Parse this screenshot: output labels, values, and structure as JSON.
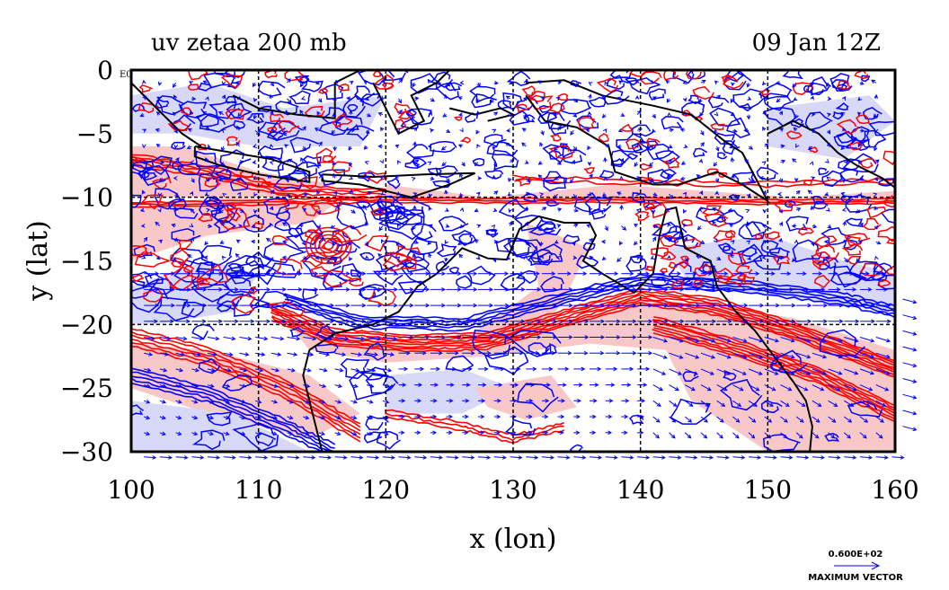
{
  "chart_data": {
    "type": "map",
    "title_left": "uv zetaa 200 mb",
    "title_right": "09 Jan 12Z",
    "xlabel": "x (lon)",
    "ylabel": "y (lat)",
    "xlim": [
      100,
      160
    ],
    "ylim": [
      -30,
      0
    ],
    "x_ticks": [
      100,
      110,
      120,
      130,
      140,
      150,
      160
    ],
    "x_tick_labels": [
      "100",
      "110",
      "120",
      "130",
      "140",
      "150",
      "160"
    ],
    "y_ticks": [
      0,
      -5,
      -10,
      -15,
      -20,
      -25,
      -30
    ],
    "y_tick_labels": [
      "0",
      "−5",
      "−10",
      "−15",
      "−20",
      "−25",
      "−30"
    ],
    "grid_lon": [
      110,
      120,
      130,
      140,
      150
    ],
    "grid_lat": [
      -10,
      -20
    ],
    "grid": "dashed",
    "positive_color": "#ff0000",
    "negative_color": "#0000ff",
    "positive_fill": "#f8c8c8",
    "negative_fill": "#d8d8f8",
    "vector_color": "#0000ff",
    "coast_color": "#000000",
    "max_vector_value": "0.600E+02",
    "max_vector_label": "MAXIMUM VECTOR",
    "corner_label": "E0"
  }
}
